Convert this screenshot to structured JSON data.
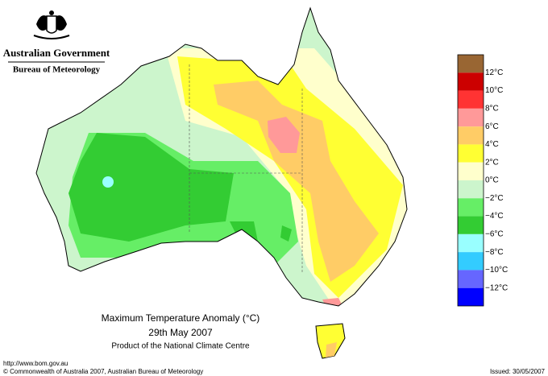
{
  "header": {
    "agency": "Australian Government",
    "bureau": "Bureau of Meteorology"
  },
  "map": {
    "title": "Maximum Temperature Anomaly (°C)",
    "date": "29th May 2007",
    "product": "Product of the National Climate Centre"
  },
  "legend": {
    "colors": [
      "#996633",
      "#cc0000",
      "#ff3333",
      "#ff9999",
      "#ffcc66",
      "#ffff33",
      "#ffffcc",
      "#ccf5cc",
      "#66ee66",
      "#33cc33",
      "#99ffff",
      "#33ccff",
      "#6666ff",
      "#0000ff"
    ],
    "labels": [
      "12°C",
      "10°C",
      "8°C",
      "6°C",
      "4°C",
      "2°C",
      "0°C",
      "−2°C",
      "−4°C",
      "−6°C",
      "−8°C",
      "−10°C",
      "−12°C"
    ]
  },
  "footer": {
    "url": "http://www.bom.gov.au",
    "copyright": "© Commonwealth of Australia 2007, Australian Bureau of Meteorology",
    "issued": "Issued: 30/05/2007"
  }
}
